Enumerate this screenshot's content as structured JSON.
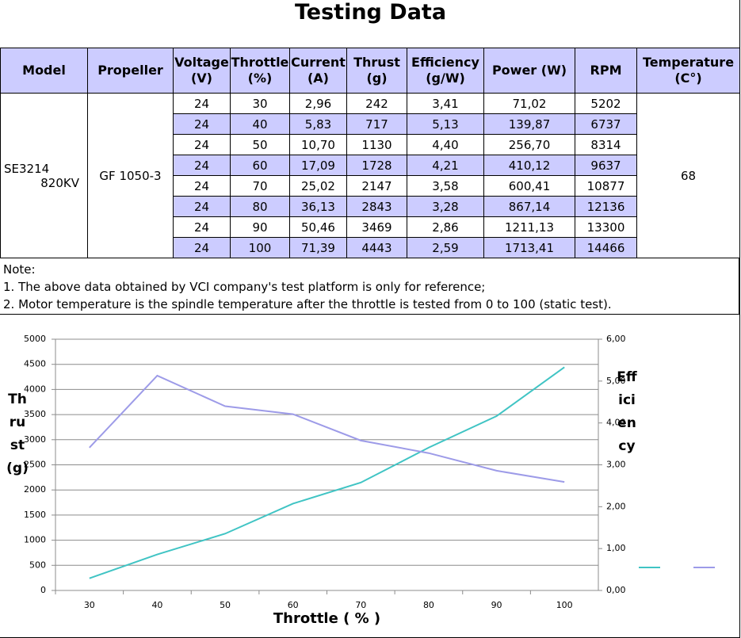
{
  "header": {
    "title": "Testing Data"
  },
  "table": {
    "headers": [
      "Model",
      "Propeller",
      "Voltage (V)",
      "Throttle (%)",
      "Current (A)",
      "Thrust (g)",
      "Efficiency (g/W)",
      "Power (W)",
      "RPM",
      "Temperature (C°)"
    ],
    "model": [
      "SE3214",
      "820KV"
    ],
    "propeller": "GF 1050-3",
    "temperature": "68",
    "rows": [
      [
        "24",
        "30",
        "2,96",
        "242",
        "3,41",
        "71,02",
        "5202"
      ],
      [
        "24",
        "40",
        "5,83",
        "717",
        "5,13",
        "139,87",
        "6737"
      ],
      [
        "24",
        "50",
        "10,70",
        "1130",
        "4,40",
        "256,70",
        "8314"
      ],
      [
        "24",
        "60",
        "17,09",
        "1728",
        "4,21",
        "410,12",
        "9637"
      ],
      [
        "24",
        "70",
        "25,02",
        "2147",
        "3,58",
        "600,41",
        "10877"
      ],
      [
        "24",
        "80",
        "36,13",
        "2843",
        "3,28",
        "867,14",
        "12136"
      ],
      [
        "24",
        "90",
        "50,46",
        "3469",
        "2,86",
        "1211,13",
        "13300"
      ],
      [
        "24",
        "100",
        "71,39",
        "4443",
        "2,59",
        "1713,41",
        "14466"
      ]
    ]
  },
  "notes": [
    "Note:",
    "1. The above data obtained by VCI company's test platform is only for reference;",
    "2. Motor temperature is the spindle temperature after the throttle is tested from 0 to 100 (static test)."
  ],
  "chart_data": {
    "type": "line",
    "x_label": "Throttle ( % )",
    "y_label": "Thrust (g)",
    "y2_label": "Efficiency",
    "categories": [
      "30",
      "40",
      "50",
      "60",
      "70",
      "80",
      "90",
      "100"
    ],
    "series": [
      {
        "color": "#40c4c4",
        "values": [
          242,
          717,
          1130,
          1728,
          2147,
          2843,
          3469,
          4443
        ]
      },
      {
        "color": "#9d9be8",
        "axis": "y2",
        "values": [
          3.41,
          5.13,
          4.4,
          4.21,
          3.58,
          3.28,
          2.86,
          2.59
        ]
      }
    ],
    "ylim": [
      0,
      5000
    ],
    "yticks": [
      0,
      500,
      1000,
      1500,
      2000,
      2500,
      3000,
      3500,
      4000,
      4500,
      5000
    ],
    "y2lim": [
      0,
      6
    ],
    "y2ticks": [
      {
        "value": 0,
        "label": "0,00"
      },
      {
        "value": 1,
        "label": "1,00"
      },
      {
        "value": 2,
        "label": "2,00"
      },
      {
        "value": 3,
        "label": "3,00"
      },
      {
        "value": 4,
        "label": "4,00"
      },
      {
        "value": 5,
        "label": "5,00"
      },
      {
        "value": 6,
        "label": "6,00"
      }
    ],
    "grid": true,
    "legend": "right"
  }
}
